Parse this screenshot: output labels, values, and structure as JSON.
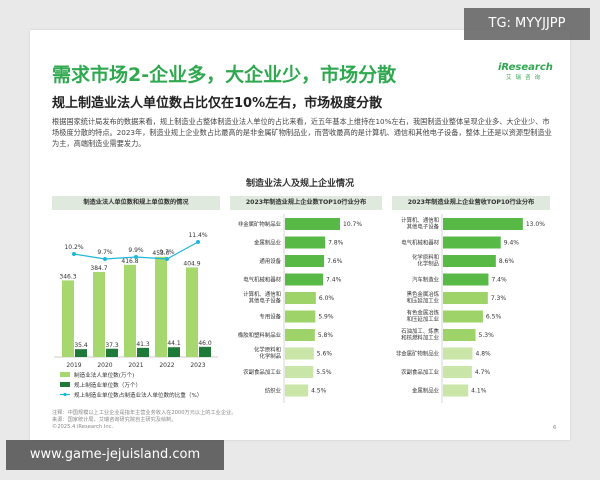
{
  "header": {
    "title": "需求市场2-企业多，大企业少，市场分散",
    "subtitle": "规上制造业法人单位数占比仅在10%左右，市场极度分散",
    "body": "根据国家统计局发布的数据来看，规上制造业占整体制造业法人单位的占比来看，近五年基本上维持在10%左右，我国制造业整体呈现企业多、大企业少、市场极度分散的特点。2023年，制造业规上企业数占比最高的是非金属矿物制品业，而营收最高的是计算机、通信和其他电子设备，整体上还是以资源型制造业为主，高端制造业需要发力。"
  },
  "logo": {
    "brand": "iResearch",
    "brand_cn": "艾瑞咨询"
  },
  "section_title": "制造业法人及规上企业情况",
  "footnote": {
    "line1": "注释：中国规模以上工业企业是指年主营业务收入在2000万元以上的工业企业。",
    "line2": "来源：国家统计局，艾瑞咨询研究院自主研究及绘制。",
    "line3": "©2025.4 iResearch Inc."
  },
  "page_number": "6",
  "overlays": {
    "tg": "TG: MYYJJPP",
    "url": "www.game-jejuisland.com"
  },
  "colors": {
    "green": "#2fa84f",
    "dark_green": "#1f7a3a",
    "light_green": "#a6d86f",
    "cyan": "#1fb6d8",
    "bar_a": "#58b947",
    "bar_b": "#9ed36a",
    "bar_c": "#c9e5a8"
  },
  "chart_data": [
    {
      "type": "bar",
      "title": "制造业法人单位数和规上单位数的情况",
      "categories": [
        "2019",
        "2020",
        "2021",
        "2022",
        "2023"
      ],
      "series": [
        {
          "name": "制造业法人单位数(万个)",
          "values": [
            346.3,
            384.7,
            416.8,
            453.0,
            404.9
          ],
          "labels": [
            "346.3",
            "384.7",
            "416.8",
            "453.0",
            "404.9"
          ]
        },
        {
          "name": "规上制造业单位数（万个）",
          "values": [
            35.4,
            37.3,
            41.3,
            44.1,
            46.0
          ],
          "labels": [
            "35.4",
            "37.3",
            "41.3",
            "44.1",
            "46.0"
          ]
        },
        {
          "name": "规上制造业单位数占制造业法人单位数的比重（%）",
          "type": "line",
          "values": [
            10.2,
            9.7,
            9.9,
            9.7,
            11.4
          ],
          "labels": [
            "10.2%",
            "9.7%",
            "9.9%",
            "9.7%",
            "11.4%"
          ]
        }
      ],
      "ylim": [
        0,
        520
      ],
      "legend": "bottom"
    },
    {
      "type": "bar",
      "orientation": "horizontal",
      "title": "2023年制造业规上企业数TOP10行业分布",
      "categories": [
        "非金属矿物制品业",
        "金属制品业",
        "通用设备",
        "电气机械和器材",
        "计算机、通信和其他电子设备",
        "专用设备",
        "橡胶和塑料制品业",
        "化学原料和化学制品",
        "农副食品加工业",
        "纺织业"
      ],
      "values": [
        10.7,
        7.8,
        7.6,
        7.4,
        6.0,
        5.9,
        5.8,
        5.6,
        5.5,
        4.5
      ],
      "labels": [
        "10.7%",
        "7.8%",
        "7.6%",
        "7.4%",
        "6.0%",
        "5.9%",
        "5.8%",
        "5.6%",
        "5.5%",
        "4.5%"
      ],
      "xlim": [
        0,
        14
      ]
    },
    {
      "type": "bar",
      "orientation": "horizontal",
      "title": "2023年制造业规上企业营收TOP10行业分布",
      "categories": [
        "计算机、通信和其他电子设备",
        "电气机械和器材",
        "化学原料和化学制品",
        "汽车制造业",
        "黑色金属冶炼和压延加工业",
        "有色金属冶炼和压延加工业",
        "石油加工、炼焦和核燃料加工业",
        "非金属矿物制品业",
        "农副食品加工业",
        "金属制品业"
      ],
      "values": [
        13.0,
        9.4,
        8.6,
        7.4,
        7.3,
        6.5,
        5.3,
        4.8,
        4.7,
        4.1
      ],
      "labels": [
        "13.0%",
        "9.4%",
        "8.6%",
        "7.4%",
        "7.3%",
        "6.5%",
        "5.3%",
        "4.8%",
        "4.7%",
        "4.1%"
      ],
      "xlim": [
        0,
        14
      ]
    }
  ]
}
